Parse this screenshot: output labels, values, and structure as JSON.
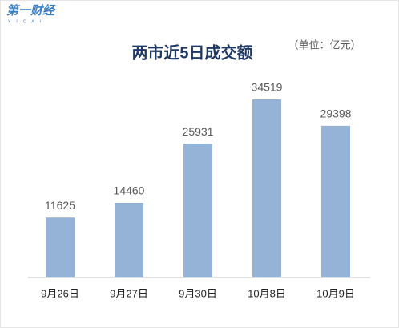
{
  "logo": {
    "text": "第一财经",
    "sub": "YICAI"
  },
  "chart_data": {
    "type": "bar",
    "title": "两市近5日成交额",
    "subtitle": "（单位：亿元）",
    "categories": [
      "9月26日",
      "9月27日",
      "9月30日",
      "10月8日",
      "10月9日"
    ],
    "values": [
      11625,
      14460,
      25931,
      34519,
      29398
    ],
    "color": "#95b3d7",
    "ylim": [
      0,
      37000
    ]
  }
}
